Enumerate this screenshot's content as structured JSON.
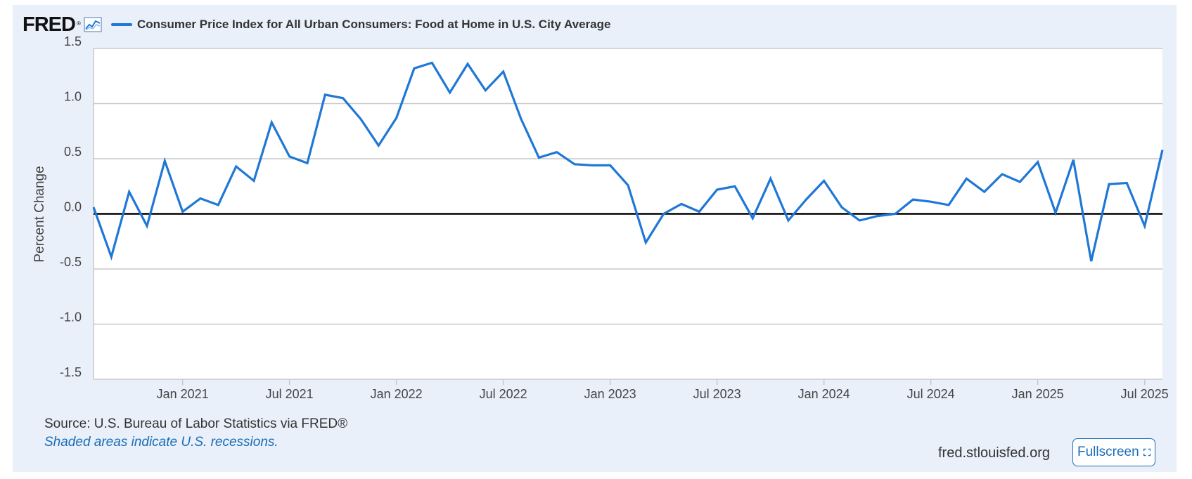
{
  "header": {
    "logo_text": "FRED",
    "logo_mark": "®",
    "graph_icon": "line-chart-icon",
    "series_title": "Consumer Price Index for All Urban Consumers: Food at Home in U.S. City Average"
  },
  "footer": {
    "source": "Source: U.S. Bureau of Labor Statistics via FRED®",
    "recession_note": "Shaded areas indicate U.S. recessions.",
    "site": "fred.stlouisfed.org",
    "fullscreen_label": "Fullscreen",
    "fullscreen_icon": "expand-icon"
  },
  "colors": {
    "series": "#1f77d6",
    "zero_line": "#000000",
    "grid": "#c8c8c8",
    "panel": "#e9f0fa",
    "link": "#1a6db8"
  },
  "chart_data": {
    "type": "line",
    "title": "Consumer Price Index for All Urban Consumers: Food at Home in U.S. City Average",
    "xlabel": "",
    "ylabel": "Percent Change",
    "ylim": [
      -1.5,
      1.5
    ],
    "yticks": [
      -1.5,
      -1.0,
      -0.5,
      0.0,
      0.5,
      1.0,
      1.5
    ],
    "ytick_labels": [
      "-1.5",
      "-1.0",
      "-0.5",
      "0.0",
      "0.5",
      "1.0",
      "1.5"
    ],
    "xlim": [
      "2020-08",
      "2025-08"
    ],
    "xticks": [
      "2021-01",
      "2021-07",
      "2022-01",
      "2022-07",
      "2023-01",
      "2023-07",
      "2024-01",
      "2024-07",
      "2025-01",
      "2025-07"
    ],
    "xtick_labels": [
      "Jan 2021",
      "Jul 2021",
      "Jan 2022",
      "Jul 2022",
      "Jan 2023",
      "Jul 2023",
      "Jan 2024",
      "Jul 2024",
      "Jan 2025",
      "Jul 2025"
    ],
    "grid": "horizontal",
    "reference_line": 0.0,
    "series": [
      {
        "name": "Consumer Price Index for All Urban Consumers: Food at Home in U.S. City Average",
        "x": [
          "2020-08",
          "2020-09",
          "2020-10",
          "2020-11",
          "2020-12",
          "2021-01",
          "2021-02",
          "2021-03",
          "2021-04",
          "2021-05",
          "2021-06",
          "2021-07",
          "2021-08",
          "2021-09",
          "2021-10",
          "2021-11",
          "2021-12",
          "2022-01",
          "2022-02",
          "2022-03",
          "2022-04",
          "2022-05",
          "2022-06",
          "2022-07",
          "2022-08",
          "2022-09",
          "2022-10",
          "2022-11",
          "2022-12",
          "2023-01",
          "2023-02",
          "2023-03",
          "2023-04",
          "2023-05",
          "2023-06",
          "2023-07",
          "2023-08",
          "2023-09",
          "2023-10",
          "2023-11",
          "2023-12",
          "2024-01",
          "2024-02",
          "2024-03",
          "2024-04",
          "2024-05",
          "2024-06",
          "2024-07",
          "2024-08",
          "2024-09",
          "2024-10",
          "2024-11",
          "2024-12",
          "2025-01",
          "2025-02",
          "2025-03",
          "2025-04",
          "2025-05",
          "2025-06",
          "2025-07",
          "2025-08"
        ],
        "values": [
          0.06,
          -0.39,
          0.2,
          -0.11,
          0.48,
          0.02,
          0.14,
          0.08,
          0.43,
          0.3,
          0.83,
          0.52,
          0.46,
          1.08,
          1.05,
          0.86,
          0.62,
          0.87,
          1.32,
          1.37,
          1.1,
          1.36,
          1.12,
          1.29,
          0.86,
          0.51,
          0.56,
          0.45,
          0.44,
          0.44,
          0.26,
          -0.26,
          0.0,
          0.09,
          0.02,
          0.22,
          0.25,
          -0.04,
          0.32,
          -0.06,
          0.13,
          0.3,
          0.06,
          -0.06,
          -0.02,
          0.0,
          0.13,
          0.11,
          0.08,
          0.32,
          0.2,
          0.36,
          0.29,
          0.47,
          0.01,
          0.49,
          -0.43,
          0.27,
          0.28,
          -0.11,
          0.58
        ]
      }
    ]
  }
}
